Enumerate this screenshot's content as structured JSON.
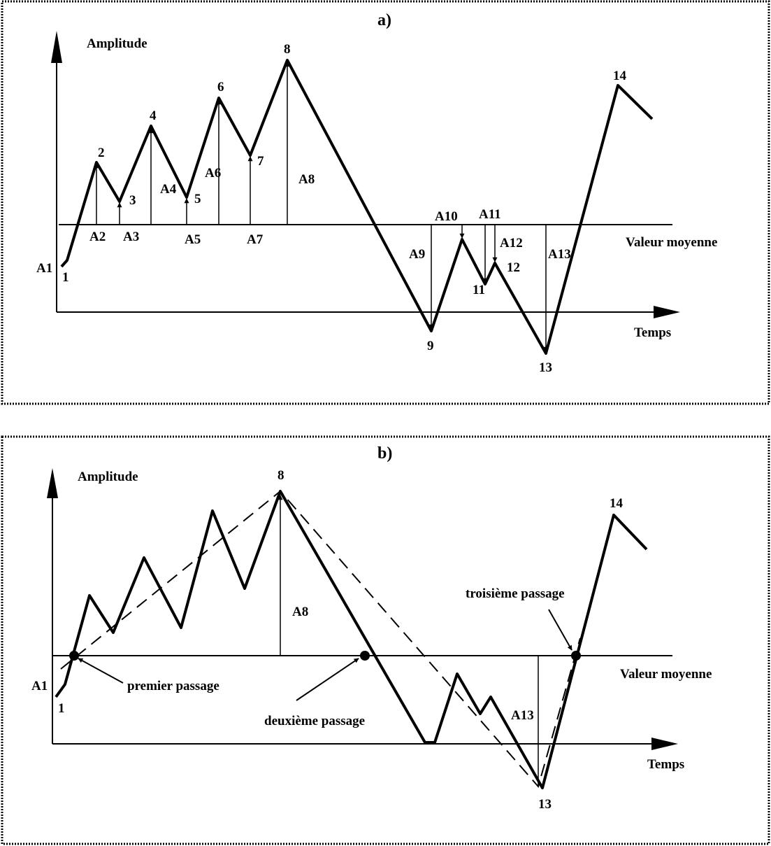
{
  "panel_a": {
    "title": "a)",
    "y_axis_label": "Amplitude",
    "x_axis_label": "Temps",
    "mean_label": "Valeur moyenne",
    "points": [
      "1",
      "2",
      "3",
      "4",
      "5",
      "6",
      "7",
      "8",
      "9",
      "11",
      "12",
      "13",
      "14"
    ],
    "amplitudes": [
      "A1",
      "A2",
      "A3",
      "A4",
      "A5",
      "A6",
      "A7",
      "A8",
      "A9",
      "A10",
      "A11",
      "A12",
      "A13"
    ]
  },
  "panel_b": {
    "title": "b)",
    "y_axis_label": "Amplitude",
    "x_axis_label": "Temps",
    "mean_label": "Valeur moyenne",
    "points": [
      "8",
      "14",
      "1",
      "13"
    ],
    "amplitudes": [
      "A8",
      "A1",
      "A13"
    ],
    "crossings": [
      "premier passage",
      "deuxième passage",
      "troisième passage"
    ]
  }
}
